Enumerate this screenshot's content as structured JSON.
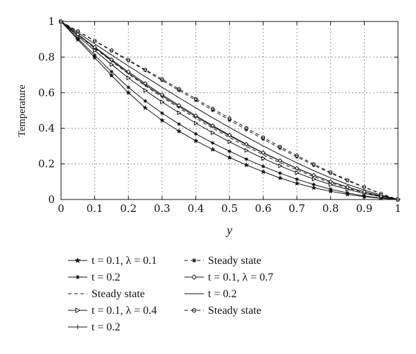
{
  "chart_data": {
    "type": "line",
    "title": "",
    "xlabel": "y",
    "ylabel": "Temperature",
    "xlim": [
      0,
      1
    ],
    "ylim": [
      0,
      1
    ],
    "xticks": [
      "0",
      "0.1",
      "0.2",
      "0.3",
      "0.4",
      "0.5",
      "0.6",
      "0.7",
      "0.8",
      "0.9",
      "1"
    ],
    "yticks": [
      "0",
      "0.2",
      "0.4",
      "0.6",
      "0.8",
      "1"
    ],
    "grid": true,
    "legend_position": "bottom",
    "x": [
      0,
      0.05,
      0.1,
      0.15,
      0.2,
      0.25,
      0.3,
      0.35,
      0.4,
      0.45,
      0.5,
      0.55,
      0.6,
      0.65,
      0.7,
      0.75,
      0.8,
      0.85,
      0.9,
      0.95,
      1
    ],
    "series": [
      {
        "name": "t = 0.1, λ = 0.1",
        "legend_text": "t = 0.1, λ = 0.1",
        "marker": "star",
        "dash": "solid",
        "values": [
          1.0,
          0.898,
          0.797,
          0.697,
          0.6,
          0.515,
          0.445,
          0.384,
          0.33,
          0.281,
          0.236,
          0.194,
          0.156,
          0.121,
          0.091,
          0.066,
          0.046,
          0.029,
          0.016,
          0.007,
          0.0
        ]
      },
      {
        "name": "t = 0.2",
        "legend_text": "t = 0.2",
        "marker": "asterisk",
        "dash": "solid",
        "values": [
          1.0,
          0.905,
          0.81,
          0.718,
          0.63,
          0.553,
          0.485,
          0.424,
          0.369,
          0.318,
          0.271,
          0.227,
          0.186,
          0.148,
          0.114,
          0.084,
          0.058,
          0.037,
          0.02,
          0.008,
          0.0
        ]
      },
      {
        "name": "Steady state",
        "legend_text": "Steady state",
        "marker": "none",
        "dash": "dashed",
        "values": [
          1.0,
          0.925,
          0.85,
          0.777,
          0.706,
          0.639,
          0.575,
          0.514,
          0.456,
          0.401,
          0.348,
          0.298,
          0.251,
          0.207,
          0.166,
          0.128,
          0.094,
          0.064,
          0.038,
          0.017,
          0.0
        ]
      },
      {
        "name": "t = 0.1, λ = 0.4",
        "legend_text": "t = 0.1, λ = 0.4",
        "marker": "triangle-right",
        "dash": "solid",
        "values": [
          1.0,
          0.918,
          0.837,
          0.758,
          0.683,
          0.613,
          0.548,
          0.487,
          0.429,
          0.375,
          0.324,
          0.276,
          0.231,
          0.189,
          0.15,
          0.115,
          0.084,
          0.057,
          0.034,
          0.015,
          0.0
        ]
      },
      {
        "name": "t = 0.2",
        "legend_text": "t = 0.2",
        "marker": "plus",
        "dash": "solid",
        "values": [
          1.0,
          0.926,
          0.853,
          0.78,
          0.71,
          0.644,
          0.582,
          0.522,
          0.465,
          0.41,
          0.358,
          0.308,
          0.261,
          0.217,
          0.175,
          0.136,
          0.101,
          0.07,
          0.043,
          0.02,
          0.0
        ]
      },
      {
        "name": "Steady state",
        "legend_text": "Steady state",
        "marker": "asterisk",
        "dash": "dashed",
        "values": [
          1.0,
          0.945,
          0.89,
          0.835,
          0.78,
          0.725,
          0.669,
          0.613,
          0.557,
          0.501,
          0.446,
          0.392,
          0.339,
          0.288,
          0.239,
          0.192,
          0.148,
          0.106,
          0.068,
          0.032,
          0.0
        ]
      },
      {
        "name": "t = 0.1, λ = 0.7",
        "legend_text": "t = 0.1, λ = 0.7",
        "marker": "diamond",
        "dash": "solid",
        "values": [
          1.0,
          0.928,
          0.856,
          0.786,
          0.717,
          0.652,
          0.589,
          0.529,
          0.471,
          0.415,
          0.362,
          0.311,
          0.263,
          0.218,
          0.176,
          0.137,
          0.101,
          0.07,
          0.043,
          0.02,
          0.0
        ]
      },
      {
        "name": "t = 0.2",
        "legend_text": "t = 0.2",
        "marker": "none",
        "dash": "solid",
        "values": [
          1.0,
          0.937,
          0.874,
          0.812,
          0.75,
          0.69,
          0.63,
          0.572,
          0.515,
          0.459,
          0.405,
          0.352,
          0.301,
          0.252,
          0.206,
          0.162,
          0.122,
          0.085,
          0.053,
          0.025,
          0.0
        ]
      },
      {
        "name": "Steady state",
        "legend_text": "Steady state",
        "marker": "circle",
        "dash": "dashed",
        "values": [
          1.0,
          0.946,
          0.892,
          0.838,
          0.784,
          0.73,
          0.676,
          0.621,
          0.566,
          0.511,
          0.456,
          0.402,
          0.349,
          0.297,
          0.247,
          0.199,
          0.153,
          0.11,
          0.07,
          0.033,
          0.0
        ]
      }
    ]
  }
}
